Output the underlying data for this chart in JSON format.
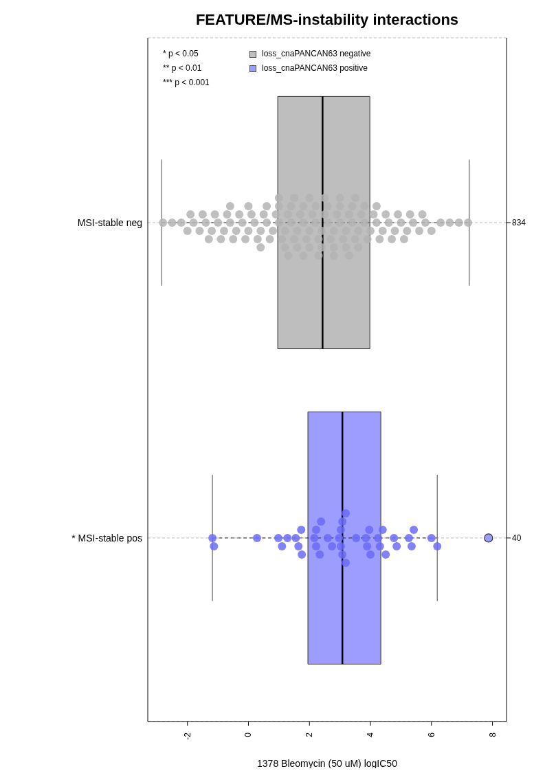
{
  "chart_data": {
    "type": "box",
    "orientation": "horizontal",
    "title": "FEATURE/MS-instability interactions",
    "xlabel": "1378 Bleomycin (50 uM) logIC50",
    "categories": [
      "MSI-stable neg",
      "* MSI-stable pos"
    ],
    "xlim": [
      -3.3,
      8.46
    ],
    "xticks": [
      -2,
      0,
      2,
      4,
      6,
      8
    ],
    "grid": "y",
    "legend": "top left",
    "series": [
      {
        "name": "loss_cnaPANCAN63 negative",
        "color": "#bebebe",
        "boxes": [
          {
            "low": -2.84,
            "q1": 0.96,
            "median": 2.43,
            "q3": 3.98,
            "high": 7.24
          },
          null
        ]
      },
      {
        "name": "loss_cnaPANCAN63 positive",
        "color": "#9d9dff",
        "boxes": [
          null,
          {
            "low": -1.18,
            "q1": 1.95,
            "median": 3.08,
            "q3": 4.34,
            "high": 6.19,
            "outliers": [
              7.87
            ]
          }
        ]
      },
      {
        "type": "scatter",
        "color": "#b4b4b4",
        "x": [
          "MSI-stable neg",
          "MSI-stable neg",
          "MSI-stable neg",
          "MSI-stable neg",
          "MSI-stable neg",
          "MSI-stable neg",
          "MSI-stable neg",
          "MSI-stable neg",
          "MSI-stable neg",
          "MSI-stable neg",
          "MSI-stable neg",
          "MSI-stable neg",
          "MSI-stable neg",
          "MSI-stable neg",
          "MSI-stable neg",
          "MSI-stable neg",
          "MSI-stable neg",
          "MSI-stable neg",
          "MSI-stable neg",
          "MSI-stable neg",
          "MSI-stable neg",
          "MSI-stable neg",
          "MSI-stable neg",
          "MSI-stable neg",
          "MSI-stable neg",
          "MSI-stable neg",
          "MSI-stable neg",
          "MSI-stable neg",
          "MSI-stable neg",
          "MSI-stable neg",
          "MSI-stable neg",
          "MSI-stable neg",
          "MSI-stable neg",
          "MSI-stable neg",
          "MSI-stable neg",
          "MSI-stable neg",
          "MSI-stable neg",
          "MSI-stable neg",
          "MSI-stable neg",
          "MSI-stable neg",
          "MSI-stable neg",
          "MSI-stable neg",
          "MSI-stable neg",
          "MSI-stable neg",
          "MSI-stable neg",
          "MSI-stable neg",
          "MSI-stable neg",
          "MSI-stable neg",
          "MSI-stable neg",
          "MSI-stable neg",
          "MSI-stable neg",
          "MSI-stable neg",
          "MSI-stable neg",
          "MSI-stable neg",
          "MSI-stable neg",
          "MSI-stable neg",
          "MSI-stable neg",
          "MSI-stable neg",
          "MSI-stable neg",
          "MSI-stable neg",
          "MSI-stable neg",
          "MSI-stable neg",
          "MSI-stable neg",
          "MSI-stable neg",
          "MSI-stable neg",
          "MSI-stable neg",
          "MSI-stable neg",
          "MSI-stable neg",
          "MSI-stable neg",
          "MSI-stable neg",
          "MSI-stable neg",
          "MSI-stable neg",
          "MSI-stable neg",
          "MSI-stable neg",
          "MSI-stable neg",
          "MSI-stable neg",
          "MSI-stable neg",
          "MSI-stable neg",
          "MSI-stable neg",
          "MSI-stable neg",
          "MSI-stable neg",
          "MSI-stable neg",
          "MSI-stable neg",
          "MSI-stable neg",
          "MSI-stable neg",
          "MSI-stable neg",
          "MSI-stable neg",
          "MSI-stable neg",
          "MSI-stable neg",
          "MSI-stable neg",
          "MSI-stable neg",
          "MSI-stable neg",
          "MSI-stable neg",
          "MSI-stable neg",
          "MSI-stable neg",
          "MSI-stable neg",
          "MSI-stable neg",
          "MSI-stable neg",
          "MSI-stable neg",
          "MSI-stable neg",
          "MSI-stable neg",
          "MSI-stable neg",
          "MSI-stable neg",
          "MSI-stable neg",
          "MSI-stable neg",
          "MSI-stable neg",
          "MSI-stable neg",
          "MSI-stable neg",
          "MSI-stable neg",
          "MSI-stable neg",
          "MSI-stable neg",
          "MSI-stable neg",
          "MSI-stable neg",
          "MSI-stable neg",
          "MSI-stable neg",
          "MSI-stable neg"
        ],
        "values": [
          -2.8,
          -2.5,
          -2.2,
          -2.0,
          -1.8,
          -1.6,
          -1.4,
          -1.2,
          -1.0,
          -0.8,
          -0.6,
          -0.4,
          -0.2,
          0.0,
          0.2,
          0.4,
          0.6,
          0.8,
          1.0,
          1.2,
          1.4,
          1.6,
          1.8,
          2.0,
          2.2,
          2.4,
          2.6,
          2.8,
          3.0,
          3.2,
          3.4,
          3.6,
          3.8,
          4.0,
          4.2,
          4.4,
          4.6,
          4.8,
          5.0,
          5.2,
          5.4,
          5.6,
          5.8,
          6.0,
          6.3,
          6.6,
          6.9,
          7.2,
          -1.9,
          -1.5,
          -1.1,
          -0.7,
          -0.3,
          0.1,
          0.5,
          0.9,
          1.3,
          1.7,
          2.1,
          2.5,
          2.9,
          3.3,
          3.7,
          4.1,
          4.5,
          4.9,
          5.3,
          5.7,
          -1.3,
          -0.9,
          -0.5,
          -0.1,
          0.3,
          0.7,
          1.1,
          1.5,
          1.9,
          2.3,
          2.7,
          3.1,
          3.5,
          3.9,
          4.3,
          4.7,
          5.1,
          -0.6,
          0.0,
          0.6,
          1.0,
          1.4,
          1.8,
          2.2,
          2.6,
          3.0,
          3.4,
          3.8,
          4.2,
          0.4,
          1.2,
          1.6,
          2.0,
          2.4,
          2.8,
          3.2,
          3.6,
          1.0,
          1.5,
          2.0,
          2.5,
          3.0,
          3.5,
          1.3,
          1.8,
          2.3,
          2.8,
          3.3
        ]
      },
      {
        "type": "scatter",
        "color": "#6b6bf7",
        "x": [
          "* MSI-stable pos",
          "* MSI-stable pos",
          "* MSI-stable pos",
          "* MSI-stable pos",
          "* MSI-stable pos",
          "* MSI-stable pos",
          "* MSI-stable pos",
          "* MSI-stable pos",
          "* MSI-stable pos",
          "* MSI-stable pos",
          "* MSI-stable pos",
          "* MSI-stable pos",
          "* MSI-stable pos",
          "* MSI-stable pos",
          "* MSI-stable pos",
          "* MSI-stable pos",
          "* MSI-stable pos",
          "* MSI-stable pos",
          "* MSI-stable pos",
          "* MSI-stable pos",
          "* MSI-stable pos",
          "* MSI-stable pos",
          "* MSI-stable pos",
          "* MSI-stable pos",
          "* MSI-stable pos",
          "* MSI-stable pos",
          "* MSI-stable pos",
          "* MSI-stable pos",
          "* MSI-stable pos",
          "* MSI-stable pos",
          "* MSI-stable pos",
          "* MSI-stable pos",
          "* MSI-stable pos",
          "* MSI-stable pos",
          "* MSI-stable pos",
          "* MSI-stable pos",
          "* MSI-stable pos",
          "* MSI-stable pos",
          "* MSI-stable pos",
          "* MSI-stable pos"
        ],
        "values": [
          -1.18,
          -1.13,
          0.28,
          0.98,
          1.1,
          1.28,
          1.55,
          1.64,
          1.73,
          1.75,
          2.16,
          2.22,
          2.22,
          2.34,
          2.38,
          2.6,
          2.74,
          2.97,
          3.03,
          3.03,
          3.08,
          3.08,
          3.19,
          3.19,
          3.53,
          3.85,
          3.89,
          3.96,
          4.0,
          4.25,
          4.31,
          4.4,
          4.5,
          4.77,
          4.86,
          5.26,
          5.35,
          5.42,
          6.0,
          6.19
        ]
      }
    ],
    "annotations": [
      "* p < 0.05",
      "** p < 0.01",
      "*** p < 0.001",
      "834",
      "40"
    ]
  }
}
